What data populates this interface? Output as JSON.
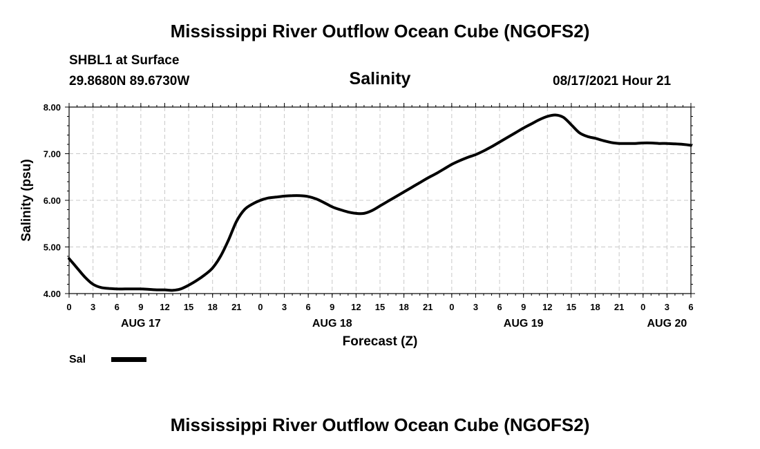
{
  "top_title": "Mississippi River Outflow Ocean Cube (NGOFS2)",
  "bottom_title": "Mississippi River Outflow Ocean Cube (NGOFS2)",
  "station": "SHBL1 at Surface",
  "coords": "29.8680N  89.6730W",
  "variable": "Salinity",
  "datetime": "08/17/2021 Hour 21",
  "chart_data": {
    "type": "line",
    "title": "Salinity",
    "xlabel": "Forecast (Z)",
    "ylabel": "Salinity (psu)",
    "ylim": [
      4.0,
      8.0
    ],
    "xlim": [
      0,
      78
    ],
    "y_ticks": [
      4.0,
      5.0,
      6.0,
      7.0,
      8.0
    ],
    "y_tick_labels": [
      "4.00",
      "5.00",
      "6.00",
      "7.00",
      "8.00"
    ],
    "x_ticks": [
      0,
      3,
      6,
      9,
      12,
      15,
      18,
      21,
      24,
      27,
      30,
      33,
      36,
      39,
      42,
      45,
      48,
      51,
      54,
      57,
      60,
      63,
      66,
      69,
      72,
      75,
      78
    ],
    "x_tick_labels": [
      "0",
      "3",
      "6",
      "9",
      "12",
      "15",
      "18",
      "21",
      "0",
      "3",
      "6",
      "9",
      "12",
      "15",
      "18",
      "21",
      "0",
      "3",
      "6",
      "9",
      "12",
      "15",
      "18",
      "21",
      "0",
      "3",
      "6"
    ],
    "date_labels": [
      {
        "hour": 9,
        "label": "AUG 17"
      },
      {
        "hour": 33,
        "label": "AUG 18"
      },
      {
        "hour": 57,
        "label": "AUG 19"
      },
      {
        "hour": 75,
        "label": "AUG 20"
      }
    ],
    "grid": true,
    "legend": "bottom-left",
    "series": [
      {
        "name": "Sal",
        "color": "#000000",
        "x": [
          0,
          1,
          2,
          3,
          4,
          5,
          6,
          7,
          8,
          9,
          10,
          11,
          12,
          13,
          14,
          15,
          16,
          17,
          18,
          19,
          20,
          21,
          22,
          23,
          24,
          25,
          26,
          27,
          28,
          29,
          30,
          31,
          32,
          33,
          34,
          35,
          36,
          37,
          38,
          39,
          40,
          41,
          42,
          43,
          44,
          45,
          46,
          47,
          48,
          49,
          50,
          51,
          52,
          53,
          54,
          55,
          56,
          57,
          58,
          59,
          60,
          61,
          62,
          63,
          64,
          65,
          66,
          67,
          68,
          69,
          70,
          71,
          72,
          73,
          74,
          75,
          76,
          77,
          78
        ],
        "values": [
          4.75,
          4.55,
          4.35,
          4.2,
          4.13,
          4.11,
          4.1,
          4.1,
          4.1,
          4.1,
          4.09,
          4.08,
          4.08,
          4.07,
          4.1,
          4.18,
          4.28,
          4.4,
          4.55,
          4.8,
          5.15,
          5.55,
          5.8,
          5.92,
          6.0,
          6.05,
          6.07,
          6.09,
          6.1,
          6.1,
          6.08,
          6.03,
          5.95,
          5.86,
          5.8,
          5.75,
          5.72,
          5.72,
          5.78,
          5.88,
          5.98,
          6.08,
          6.18,
          6.28,
          6.38,
          6.48,
          6.57,
          6.67,
          6.77,
          6.85,
          6.92,
          6.98,
          7.06,
          7.15,
          7.25,
          7.35,
          7.45,
          7.55,
          7.64,
          7.73,
          7.8,
          7.83,
          7.78,
          7.62,
          7.45,
          7.37,
          7.33,
          7.28,
          7.24,
          7.22,
          7.22,
          7.22,
          7.23,
          7.23,
          7.22,
          7.22,
          7.21,
          7.2,
          7.18
        ]
      }
    ]
  }
}
